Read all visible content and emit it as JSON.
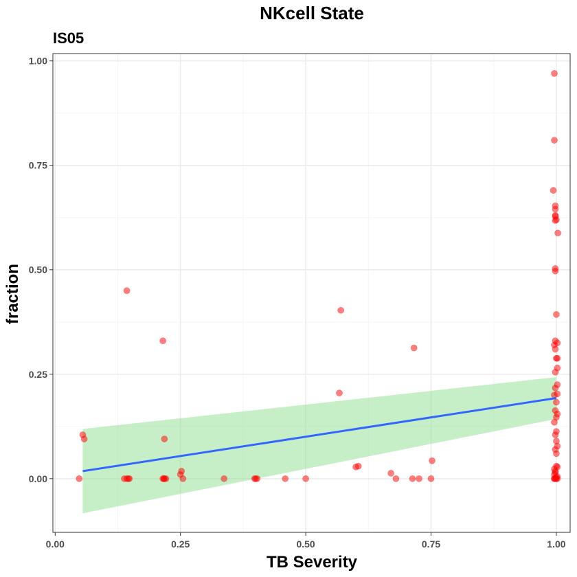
{
  "chart_data": {
    "type": "scatter",
    "title": "NKcell State",
    "subtitle": "IS05",
    "xlabel": "TB Severity",
    "ylabel": "fraction",
    "xlim": [
      -0.0045,
      1.0275
    ],
    "ylim": [
      -0.1285,
      1.0175
    ],
    "grid": true,
    "x_ticks": [
      0.0,
      0.25,
      0.5,
      0.75,
      1.0
    ],
    "x_tick_labels": [
      "0.00",
      "0.25",
      "0.50",
      "0.75",
      "1.00"
    ],
    "y_ticks": [
      0.0,
      0.25,
      0.5,
      0.75,
      1.0
    ],
    "y_tick_labels": [
      "0.00",
      "0.25",
      "0.50",
      "0.75",
      "1.00"
    ],
    "colors": {
      "points": "#ff0000",
      "fit_line": "#3366ff",
      "confidence_band": "#90e090",
      "panel_border": "#333333",
      "grid_major": "#ebebeb",
      "grid_minor": "#f5f5f5"
    },
    "series": [
      {
        "type": "points",
        "x": [
          0.048,
          0.055,
          0.058,
          0.138,
          0.143,
          0.146,
          0.148,
          0.215,
          0.217,
          0.218,
          0.221,
          0.143,
          0.215,
          0.218,
          0.25,
          0.252,
          0.255,
          0.337,
          0.398,
          0.4,
          0.403,
          0.459,
          0.5,
          0.567,
          0.57,
          0.6,
          0.605,
          0.67,
          0.68,
          0.713,
          0.716,
          0.726,
          0.75,
          0.752,
          0.994,
          0.996,
          0.996,
          0.998,
          0.998,
          1.0,
          0.998,
          0.998,
          0.998,
          1.003,
          0.998,
          0.998,
          1.0,
          0.998,
          0.996,
          1.002,
          0.998,
          1.0,
          1.002,
          1.002,
          0.998,
          1.002,
          1.002,
          0.996,
          0.998,
          1.0,
          0.998,
          1.002,
          1.0,
          0.996,
          1.0,
          0.998,
          1.0,
          1.002,
          0.998,
          1.0,
          1.0,
          1.002,
          0.996,
          0.998,
          0.998,
          0.996,
          1.002,
          1.0,
          0.998,
          0.996,
          1.0,
          1.002,
          0.996
        ],
        "y": [
          0.0,
          0.105,
          0.095,
          0.0,
          0.0,
          0.0,
          0.0,
          0.0,
          0.0,
          0.0,
          0.0,
          0.45,
          0.33,
          0.095,
          0.01,
          0.018,
          0.0,
          0.0,
          0.0,
          0.0,
          0.0,
          0.0,
          0.0,
          0.205,
          0.403,
          0.028,
          0.03,
          0.013,
          0.0,
          0.0,
          0.313,
          0.0,
          0.0,
          0.043,
          0.69,
          0.97,
          0.81,
          0.653,
          0.628,
          0.62,
          0.618,
          0.645,
          0.63,
          0.588,
          0.503,
          0.497,
          0.393,
          0.33,
          0.32,
          0.325,
          0.31,
          0.288,
          0.288,
          0.265,
          0.255,
          0.225,
          0.203,
          0.2,
          0.217,
          0.183,
          0.163,
          0.155,
          0.147,
          0.135,
          0.113,
          0.105,
          0.09,
          0.078,
          0.07,
          0.06,
          0.03,
          0.028,
          0.023,
          0.018,
          0.015,
          0.01,
          0.005,
          0.003,
          0.0,
          0.0,
          0.0,
          0.0,
          0.0
        ]
      },
      {
        "type": "fit_line",
        "x": [
          0.055,
          1.0
        ],
        "y": [
          0.018,
          0.193
        ]
      },
      {
        "type": "confidence_band",
        "x": [
          0.055,
          1.0
        ],
        "y_lower": [
          -0.083,
          0.143
        ],
        "y_upper": [
          0.119,
          0.243
        ]
      }
    ]
  }
}
